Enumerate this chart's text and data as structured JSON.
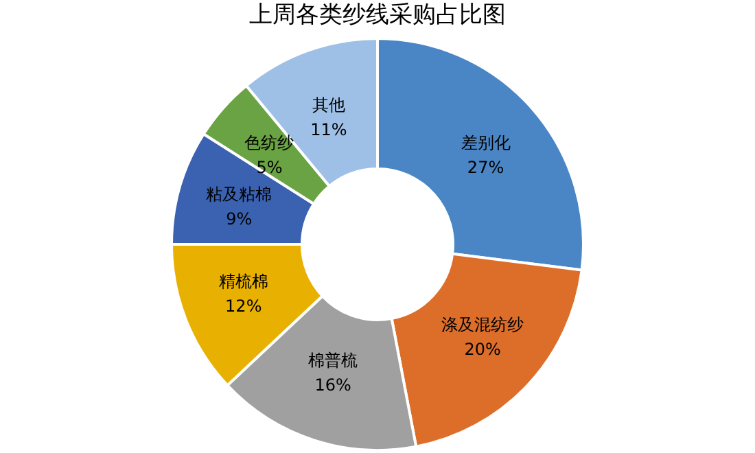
{
  "chart_data": {
    "type": "donut",
    "title": "上周各类纱线采购占比图",
    "categories": [
      "差别化",
      "涤及混纺纱",
      "棉普梳",
      "精梳棉",
      "粘及粘棉",
      "色纺纱",
      "其他"
    ],
    "values": [
      27,
      20,
      16,
      12,
      9,
      5,
      11
    ],
    "colors": [
      "#4a86c5",
      "#dd6e2a",
      "#a0a0a0",
      "#e8b000",
      "#3a62b0",
      "#6aa343",
      "#9ec0e6"
    ],
    "value_labels": [
      "27%",
      "20%",
      "16%",
      "12%",
      "9%",
      "5%",
      "11%"
    ],
    "legend": false
  }
}
